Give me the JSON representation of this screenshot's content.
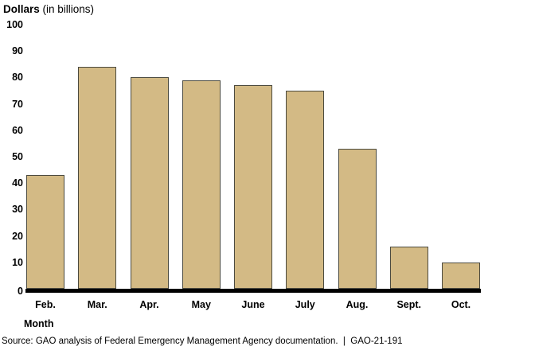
{
  "title": {
    "bold": "Dollars",
    "normal": " (in billions)"
  },
  "chart_data": {
    "type": "bar",
    "categories": [
      "Feb.",
      "Mar.",
      "Apr.",
      "May",
      "June",
      "July",
      "Aug.",
      "Sept.",
      "Oct."
    ],
    "values": [
      43,
      84,
      80,
      79,
      77,
      75,
      53,
      16,
      10
    ],
    "title": "Dollars (in billions)",
    "xlabel": "Month",
    "ylabel": "Dollars (in billions)",
    "ylim": [
      0,
      100
    ],
    "ytick_step": 10,
    "grid": false,
    "legend": false,
    "bar_color": "#d3ba85",
    "bar_border_color": "#4b4a3f",
    "axis_color": "#000000"
  },
  "xlabel": "Month",
  "source": "Source: GAO analysis of Federal Emergency Management Agency documentation.  |  GAO-21-191"
}
